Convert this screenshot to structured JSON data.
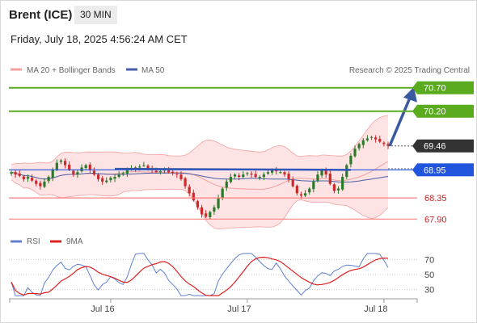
{
  "header": {
    "instrument": "Brent (ICE)",
    "timeframe": "30 MIN",
    "datetime": "Friday, July 18, 2025 4:56:24 AM CET"
  },
  "legend": {
    "ma20": "MA 20 + Bollinger Bands",
    "ma50": "MA 50",
    "credit": "Research © 2025 Trading Central",
    "rsi": "RSI",
    "rsi_ma": "9MA"
  },
  "colors": {
    "resistance": "#5aab1e",
    "support": "#ff7f7f",
    "current": "#333333",
    "pivot": "#2255dd",
    "ma20": "#f4a0a0",
    "ma50": "#4a5fa8",
    "bollinger_fill": "#fde3e3",
    "trendline": "#3a5aa0",
    "bull_candle": "#2a7a2a",
    "bear_candle": "#cc2a2a",
    "rsi_line": "#6080d0",
    "rsi_ma_line": "#dd2020"
  },
  "chart_data": [
    {
      "type": "candlestick",
      "title": "Brent (ICE)",
      "timeframe": "30 MIN",
      "x_ticks": [
        "Jul 16",
        "Jul 17",
        "Jul 18"
      ],
      "ylim": [
        67.75,
        70.85
      ],
      "levels": [
        {
          "value": 70.7,
          "label": "70.70",
          "kind": "resistance"
        },
        {
          "value": 70.2,
          "label": "70.20",
          "kind": "resistance"
        },
        {
          "value": 69.46,
          "label": "69.46",
          "kind": "current"
        },
        {
          "value": 68.95,
          "label": "68.95",
          "kind": "pivot"
        },
        {
          "value": 68.35,
          "label": "68.35",
          "kind": "support"
        },
        {
          "value": 67.9,
          "label": "67.90",
          "kind": "support"
        }
      ],
      "series_close": [
        68.9,
        68.85,
        68.82,
        68.75,
        68.8,
        68.72,
        68.65,
        68.6,
        68.7,
        68.8,
        68.95,
        69.1,
        69.15,
        69.05,
        68.95,
        68.85,
        68.9,
        69.0,
        69.05,
        68.95,
        68.85,
        68.75,
        68.7,
        68.72,
        68.78,
        68.8,
        68.85,
        68.88,
        68.95,
        68.98,
        69.0,
        69.02,
        69.05,
        68.98,
        68.95,
        68.9,
        68.92,
        68.95,
        68.9,
        68.88,
        68.85,
        68.75,
        68.6,
        68.45,
        68.3,
        68.15,
        68.0,
        67.95,
        68.05,
        68.15,
        68.35,
        68.55,
        68.7,
        68.8,
        68.85,
        68.8,
        68.85,
        68.88,
        68.85,
        68.8,
        68.8,
        68.85,
        68.9,
        68.95,
        68.92,
        68.9,
        68.85,
        68.75,
        68.6,
        68.45,
        68.4,
        68.45,
        68.55,
        68.7,
        68.85,
        68.95,
        68.85,
        68.65,
        68.5,
        68.55,
        68.8,
        69.05,
        69.25,
        69.4,
        69.5,
        69.58,
        69.62,
        69.65,
        69.6,
        69.55,
        69.5,
        69.46
      ],
      "moving_averages": [
        "MA 20 + Bollinger Bands",
        "MA 50"
      ],
      "bollinger": true
    },
    {
      "type": "line",
      "title": "RSI",
      "series": [
        {
          "name": "RSI"
        },
        {
          "name": "9MA"
        }
      ],
      "y_ticks": [
        70,
        50,
        30
      ],
      "ylim": [
        20,
        80
      ]
    }
  ]
}
